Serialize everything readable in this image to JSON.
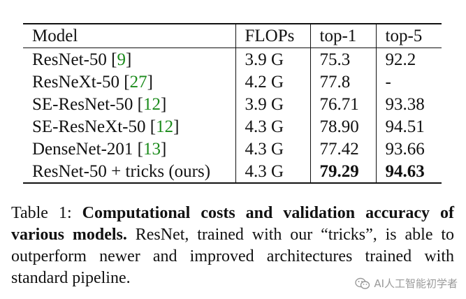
{
  "table": {
    "headers": [
      "Model",
      "FLOPs",
      "top-1",
      "top-5"
    ],
    "rows": [
      {
        "model": "ResNet-50",
        "ref": "9",
        "flops": "3.9 G",
        "top1": "75.3",
        "top5": "92.2"
      },
      {
        "model": "ResNeXt-50",
        "ref": "27",
        "flops": "4.2 G",
        "top1": "77.8",
        "top5": "-"
      },
      {
        "model": "SE-ResNet-50",
        "ref": "12",
        "flops": "3.9 G",
        "top1": "76.71",
        "top5": "93.38"
      },
      {
        "model": "SE-ResNeXt-50",
        "ref": "12",
        "flops": "4.3 G",
        "top1": "78.90",
        "top5": "94.51"
      },
      {
        "model": "DenseNet-201",
        "ref": "13",
        "flops": "4.3 G",
        "top1": "77.42",
        "top5": "93.66"
      },
      {
        "model": "ResNet-50 + tricks (ours)",
        "ref": "",
        "flops": "4.3 G",
        "top1": "79.29",
        "top5": "94.63"
      }
    ]
  },
  "caption": {
    "label": "Table 1:",
    "bold_text": "Computational costs and validation accuracy of various models.",
    "body_text": "ResNet, trained with our “tricks”, is able to outperform newer and improved architectures trained with standard pipeline."
  },
  "watermark": {
    "text": "AI人工智能初学者",
    "icon": "wechat-icon"
  },
  "colors": {
    "text": "#111111",
    "citation": "#1a8a1a",
    "watermark": "#9a9a9a"
  }
}
